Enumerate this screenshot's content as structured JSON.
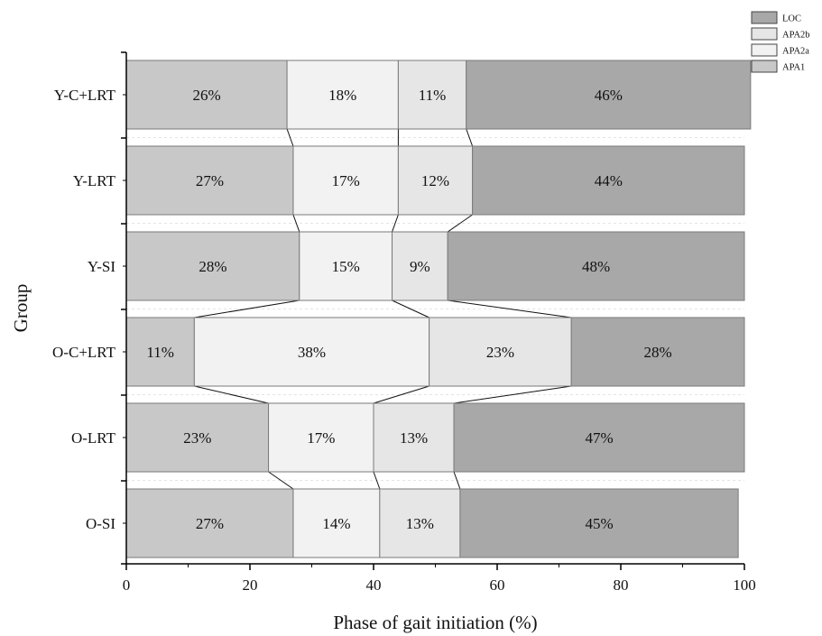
{
  "chart_data": {
    "type": "bar",
    "orientation": "horizontal",
    "stacked": true,
    "title": "",
    "xlabel": "Phase of gait initiation (%)",
    "ylabel": "Group",
    "xlim": [
      0,
      100
    ],
    "xticks": [
      0,
      20,
      40,
      60,
      80,
      100
    ],
    "grid": false,
    "legend_position": "top-right",
    "categories": [
      "Y-C+LRT",
      "Y-LRT",
      "Y-SI",
      "O-C+LRT",
      "O-LRT",
      "O-SI"
    ],
    "series": [
      {
        "name": "APA1",
        "color": "#c8c8c8",
        "values": [
          26,
          27,
          28,
          11,
          23,
          27
        ]
      },
      {
        "name": "APA2a",
        "color": "#f2f2f2",
        "values": [
          18,
          17,
          15,
          38,
          17,
          14
        ]
      },
      {
        "name": "APA2b",
        "color": "#e6e6e6",
        "values": [
          11,
          12,
          9,
          23,
          13,
          13
        ]
      },
      {
        "name": "LOC",
        "color": "#a8a8a8",
        "values": [
          46,
          44,
          48,
          28,
          47,
          45
        ]
      }
    ],
    "bar_labels": [
      [
        "26%",
        "18%",
        "11%",
        "46%"
      ],
      [
        "27%",
        "17%",
        "12%",
        "44%"
      ],
      [
        "28%",
        "15%",
        "9%",
        "48%"
      ],
      [
        "11%",
        "38%",
        "23%",
        "28%"
      ],
      [
        "23%",
        "17%",
        "13%",
        "47%"
      ],
      [
        "27%",
        "14%",
        "13%",
        "45%"
      ]
    ],
    "legend_order": [
      "LOC",
      "APA2b",
      "APA2a",
      "APA1"
    ]
  }
}
